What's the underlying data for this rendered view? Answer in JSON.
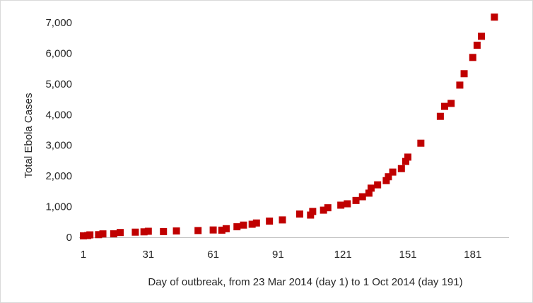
{
  "chart_data": {
    "type": "scatter",
    "title": "",
    "xlabel": "Day of outbreak, from 23 Mar 2014 (day 1) to 1 Oct 2014 (day 191)",
    "ylabel": "Total Ebola Cases",
    "xlim": [
      1,
      199
    ],
    "ylim": [
      0,
      7000
    ],
    "x_ticks": [
      1,
      31,
      61,
      91,
      121,
      151,
      181
    ],
    "x_tick_labels": [
      "1",
      "31",
      "61",
      "91",
      "121",
      "151",
      "181"
    ],
    "y_ticks": [
      0,
      1000,
      2000,
      3000,
      4000,
      5000,
      6000,
      7000
    ],
    "y_tick_labels": [
      "0",
      "1,000",
      "2,000",
      "3,000",
      "4,000",
      "5,000",
      "6,000",
      "7,000"
    ],
    "grid": false,
    "legend": false,
    "marker": "square",
    "color": "#c00000",
    "series": [
      {
        "points": [
          {
            "x": 1,
            "y": 49
          },
          {
            "x": 3,
            "y": 59
          },
          {
            "x": 4,
            "y": 80
          },
          {
            "x": 8,
            "y": 86
          },
          {
            "x": 10,
            "y": 112
          },
          {
            "x": 15,
            "y": 114
          },
          {
            "x": 18,
            "y": 157
          },
          {
            "x": 25,
            "y": 168
          },
          {
            "x": 29,
            "y": 178
          },
          {
            "x": 31,
            "y": 197
          },
          {
            "x": 38,
            "y": 187
          },
          {
            "x": 44,
            "y": 208
          },
          {
            "x": 54,
            "y": 221
          },
          {
            "x": 61,
            "y": 239
          },
          {
            "x": 65,
            "y": 233
          },
          {
            "x": 67,
            "y": 281
          },
          {
            "x": 72,
            "y": 344
          },
          {
            "x": 75,
            "y": 398
          },
          {
            "x": 79,
            "y": 426
          },
          {
            "x": 81,
            "y": 467
          },
          {
            "x": 87,
            "y": 528
          },
          {
            "x": 93,
            "y": 567
          },
          {
            "x": 101,
            "y": 759
          },
          {
            "x": 106,
            "y": 725
          },
          {
            "x": 107,
            "y": 844
          },
          {
            "x": 112,
            "y": 885
          },
          {
            "x": 114,
            "y": 964
          },
          {
            "x": 120,
            "y": 1048
          },
          {
            "x": 123,
            "y": 1093
          },
          {
            "x": 127,
            "y": 1201
          },
          {
            "x": 130,
            "y": 1323
          },
          {
            "x": 133,
            "y": 1440
          },
          {
            "x": 134,
            "y": 1603
          },
          {
            "x": 137,
            "y": 1711
          },
          {
            "x": 141,
            "y": 1848
          },
          {
            "x": 142,
            "y": 1975
          },
          {
            "x": 144,
            "y": 2127
          },
          {
            "x": 148,
            "y": 2240
          },
          {
            "x": 150,
            "y": 2473
          },
          {
            "x": 151,
            "y": 2615
          },
          {
            "x": 157,
            "y": 3069
          },
          {
            "x": 166,
            "y": 3944
          },
          {
            "x": 168,
            "y": 4269
          },
          {
            "x": 171,
            "y": 4366
          },
          {
            "x": 175,
            "y": 4963
          },
          {
            "x": 177,
            "y": 5335
          },
          {
            "x": 181,
            "y": 5864
          },
          {
            "x": 183,
            "y": 6263
          },
          {
            "x": 185,
            "y": 6553
          },
          {
            "x": 191,
            "y": 7178
          }
        ]
      }
    ]
  }
}
